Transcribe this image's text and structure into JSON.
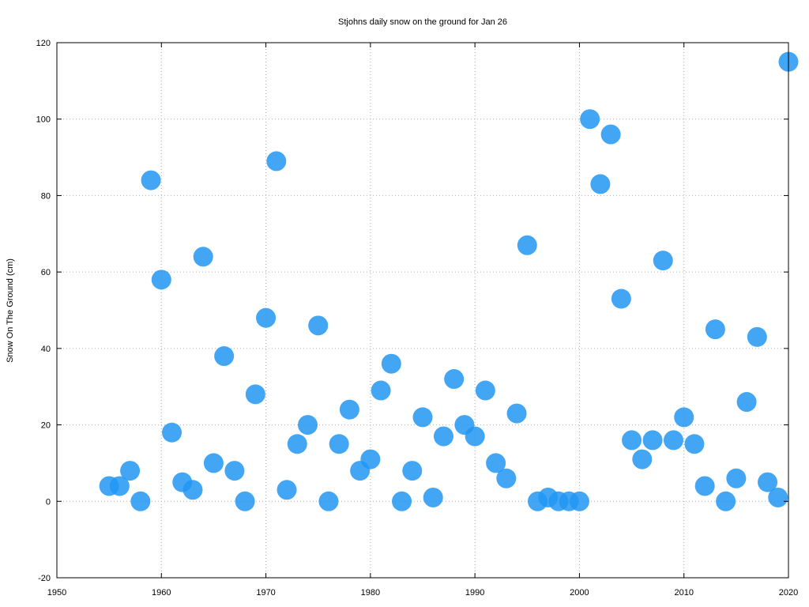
{
  "colors": {
    "point": "#2196f3",
    "grid": "#b0b0b0",
    "frame": "#000000"
  },
  "chart_data": {
    "type": "scatter",
    "title": "Stjohns daily snow on the ground for Jan 26",
    "xlabel": "",
    "ylabel": "Snow On The Ground (cm)",
    "xlim": [
      1950,
      2020
    ],
    "ylim": [
      -20,
      120
    ],
    "x_ticks": [
      1950,
      1960,
      1970,
      1980,
      1990,
      2000,
      2010,
      2020
    ],
    "y_ticks": [
      -20,
      0,
      20,
      40,
      60,
      80,
      100,
      120
    ],
    "grid": true,
    "series": [
      {
        "points": [
          [
            1955,
            4
          ],
          [
            1956,
            4
          ],
          [
            1957,
            8
          ],
          [
            1958,
            0
          ],
          [
            1959,
            84
          ],
          [
            1960,
            58
          ],
          [
            1961,
            18
          ],
          [
            1962,
            5
          ],
          [
            1963,
            3
          ],
          [
            1964,
            64
          ],
          [
            1965,
            10
          ],
          [
            1966,
            38
          ],
          [
            1967,
            8
          ],
          [
            1968,
            0
          ],
          [
            1969,
            28
          ],
          [
            1970,
            48
          ],
          [
            1971,
            89
          ],
          [
            1972,
            3
          ],
          [
            1973,
            15
          ],
          [
            1974,
            20
          ],
          [
            1975,
            46
          ],
          [
            1976,
            0
          ],
          [
            1977,
            15
          ],
          [
            1978,
            24
          ],
          [
            1979,
            8
          ],
          [
            1980,
            11
          ],
          [
            1981,
            29
          ],
          [
            1982,
            36
          ],
          [
            1983,
            0
          ],
          [
            1984,
            8
          ],
          [
            1985,
            22
          ],
          [
            1986,
            1
          ],
          [
            1987,
            17
          ],
          [
            1988,
            32
          ],
          [
            1989,
            20
          ],
          [
            1990,
            17
          ],
          [
            1991,
            29
          ],
          [
            1992,
            10
          ],
          [
            1993,
            6
          ],
          [
            1994,
            23
          ],
          [
            1995,
            67
          ],
          [
            1996,
            0
          ],
          [
            1997,
            1
          ],
          [
            1998,
            0
          ],
          [
            1999,
            0
          ],
          [
            2000,
            0
          ],
          [
            2001,
            100
          ],
          [
            2002,
            83
          ],
          [
            2003,
            96
          ],
          [
            2004,
            53
          ],
          [
            2005,
            16
          ],
          [
            2006,
            11
          ],
          [
            2007,
            16
          ],
          [
            2008,
            63
          ],
          [
            2009,
            16
          ],
          [
            2010,
            22
          ],
          [
            2011,
            15
          ],
          [
            2012,
            4
          ],
          [
            2013,
            45
          ],
          [
            2014,
            0
          ],
          [
            2015,
            6
          ],
          [
            2016,
            26
          ],
          [
            2017,
            43
          ],
          [
            2018,
            5
          ],
          [
            2019,
            1
          ],
          [
            2020,
            115
          ]
        ]
      }
    ]
  }
}
